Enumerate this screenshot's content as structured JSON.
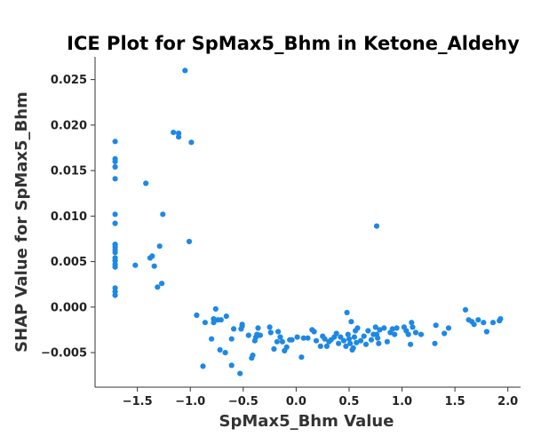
{
  "chart_data": {
    "type": "scatter",
    "title": "ICE Plot for SpMax5_Bhm in Ketone_Aldehy",
    "xlabel": "SpMax5_Bhm Value",
    "ylabel": "SHAP Value for SpMax5_Bhm",
    "xlim": [
      -1.9,
      2.12
    ],
    "ylim": [
      -0.0088,
      0.0275
    ],
    "x_ticks": [
      -1.5,
      -1.0,
      -0.5,
      0.0,
      0.5,
      1.0,
      1.5,
      2.0
    ],
    "x_tick_labels": [
      "−1.5",
      "−1.0",
      "−0.5",
      "0.0",
      "0.5",
      "1.0",
      "1.5",
      "2.0"
    ],
    "y_ticks": [
      -0.005,
      0.0,
      0.005,
      0.01,
      0.015,
      0.02,
      0.025
    ],
    "y_tick_labels": [
      "−0.005",
      "0.000",
      "0.005",
      "0.010",
      "0.015",
      "0.020",
      "0.025"
    ],
    "grid": false,
    "point_color": "#1e88e5",
    "points": [
      [
        -1.71,
        0.0182
      ],
      [
        -1.71,
        0.0163
      ],
      [
        -1.71,
        0.016
      ],
      [
        -1.71,
        0.0154
      ],
      [
        -1.71,
        0.0141
      ],
      [
        -1.71,
        0.0102
      ],
      [
        -1.71,
        0.0092
      ],
      [
        -1.71,
        0.0069
      ],
      [
        -1.71,
        0.0066
      ],
      [
        -1.71,
        0.0063
      ],
      [
        -1.71,
        0.006
      ],
      [
        -1.71,
        0.0054
      ],
      [
        -1.71,
        0.0051
      ],
      [
        -1.71,
        0.0047
      ],
      [
        -1.71,
        0.0044
      ],
      [
        -1.71,
        0.0021
      ],
      [
        -1.71,
        0.0017
      ],
      [
        -1.71,
        0.0013
      ],
      [
        -1.52,
        0.0046
      ],
      [
        -1.42,
        0.0136
      ],
      [
        -1.38,
        0.0054
      ],
      [
        -1.36,
        0.0056
      ],
      [
        -1.34,
        0.0045
      ],
      [
        -1.31,
        0.0022
      ],
      [
        -1.29,
        0.0067
      ],
      [
        -1.27,
        0.0026
      ],
      [
        -1.26,
        0.0102
      ],
      [
        -1.16,
        0.0192
      ],
      [
        -1.11,
        0.0191
      ],
      [
        -1.11,
        0.0187
      ],
      [
        -1.05,
        0.026
      ],
      [
        -1.01,
        0.0072
      ],
      [
        -0.99,
        0.0181
      ],
      [
        -0.94,
        -0.0009
      ],
      [
        -0.88,
        -0.0065
      ],
      [
        -0.86,
        -0.0017
      ],
      [
        -0.8,
        -0.0035
      ],
      [
        -0.78,
        -0.0013
      ],
      [
        -0.78,
        -0.0017
      ],
      [
        -0.76,
        -0.0002
      ],
      [
        -0.74,
        -0.0014
      ],
      [
        -0.72,
        -0.0047
      ],
      [
        -0.71,
        -0.0014
      ],
      [
        -0.67,
        -0.005
      ],
      [
        -0.66,
        -0.001
      ],
      [
        -0.61,
        -0.0064
      ],
      [
        -0.61,
        -0.0035
      ],
      [
        -0.59,
        -0.0024
      ],
      [
        -0.53,
        -0.0073
      ],
      [
        -0.52,
        -0.0024
      ],
      [
        -0.51,
        -0.0021
      ],
      [
        -0.51,
        -0.0019
      ],
      [
        -0.45,
        -0.0031
      ],
      [
        -0.42,
        -0.0056
      ],
      [
        -0.41,
        -0.0053
      ],
      [
        -0.39,
        -0.0037
      ],
      [
        -0.38,
        -0.0033
      ],
      [
        -0.37,
        -0.003
      ],
      [
        -0.36,
        -0.0023
      ],
      [
        -0.34,
        -0.0031
      ],
      [
        -0.25,
        -0.0022
      ],
      [
        -0.24,
        -0.0028
      ],
      [
        -0.21,
        -0.0046
      ],
      [
        -0.18,
        -0.0038
      ],
      [
        -0.17,
        -0.0027
      ],
      [
        -0.15,
        -0.0033
      ],
      [
        -0.13,
        -0.0038
      ],
      [
        -0.11,
        -0.0048
      ],
      [
        -0.09,
        -0.0044
      ],
      [
        -0.06,
        -0.0036
      ],
      [
        -0.04,
        -0.0036
      ],
      [
        0.01,
        -0.0033
      ],
      [
        0.05,
        -0.0055
      ],
      [
        0.07,
        -0.0034
      ],
      [
        0.11,
        -0.0034
      ],
      [
        0.15,
        -0.0025
      ],
      [
        0.17,
        -0.0027
      ],
      [
        0.19,
        -0.0037
      ],
      [
        0.23,
        -0.0043
      ],
      [
        0.25,
        -0.0032
      ],
      [
        0.27,
        -0.0035
      ],
      [
        0.29,
        -0.0043
      ],
      [
        0.31,
        -0.0038
      ],
      [
        0.33,
        -0.0036
      ],
      [
        0.36,
        -0.0033
      ],
      [
        0.38,
        -0.0029
      ],
      [
        0.4,
        -0.004
      ],
      [
        0.42,
        -0.0033
      ],
      [
        0.45,
        -0.0037
      ],
      [
        0.47,
        -0.0043
      ],
      [
        0.48,
        -0.0006
      ],
      [
        0.49,
        -0.003
      ],
      [
        0.5,
        -0.0035
      ],
      [
        0.51,
        -0.004
      ],
      [
        0.52,
        -0.0016
      ],
      [
        0.53,
        -0.0047
      ],
      [
        0.54,
        -0.0045
      ],
      [
        0.55,
        -0.0033
      ],
      [
        0.56,
        -0.0026
      ],
      [
        0.57,
        -0.0039
      ],
      [
        0.58,
        -0.0023
      ],
      [
        0.61,
        -0.0037
      ],
      [
        0.64,
        -0.0032
      ],
      [
        0.66,
        -0.0041
      ],
      [
        0.68,
        -0.0026
      ],
      [
        0.71,
        -0.0036
      ],
      [
        0.73,
        -0.003
      ],
      [
        0.75,
        -0.0022
      ],
      [
        0.76,
        -0.003
      ],
      [
        0.77,
        -0.0034
      ],
      [
        0.78,
        -0.004
      ],
      [
        0.79,
        -0.0025
      ],
      [
        0.76,
        0.0089
      ],
      [
        0.83,
        -0.0023
      ],
      [
        0.86,
        -0.0038
      ],
      [
        0.89,
        -0.0028
      ],
      [
        0.91,
        -0.0024
      ],
      [
        0.93,
        -0.003
      ],
      [
        0.95,
        -0.0023
      ],
      [
        1.02,
        -0.0022
      ],
      [
        1.04,
        -0.0026
      ],
      [
        1.06,
        -0.003
      ],
      [
        1.08,
        -0.0041
      ],
      [
        1.09,
        -0.0017
      ],
      [
        1.1,
        -0.0022
      ],
      [
        1.13,
        -0.0028
      ],
      [
        1.18,
        -0.003
      ],
      [
        1.31,
        -0.004
      ],
      [
        1.32,
        -0.002
      ],
      [
        1.4,
        -0.0029
      ],
      [
        1.44,
        -0.0023
      ],
      [
        1.6,
        -0.0003
      ],
      [
        1.63,
        -0.0014
      ],
      [
        1.66,
        -0.0016
      ],
      [
        1.68,
        -0.0019
      ],
      [
        1.72,
        -0.0014
      ],
      [
        1.77,
        -0.0017
      ],
      [
        1.8,
        -0.0027
      ],
      [
        1.86,
        -0.0017
      ],
      [
        1.92,
        -0.0015
      ],
      [
        1.93,
        -0.0013
      ]
    ]
  }
}
